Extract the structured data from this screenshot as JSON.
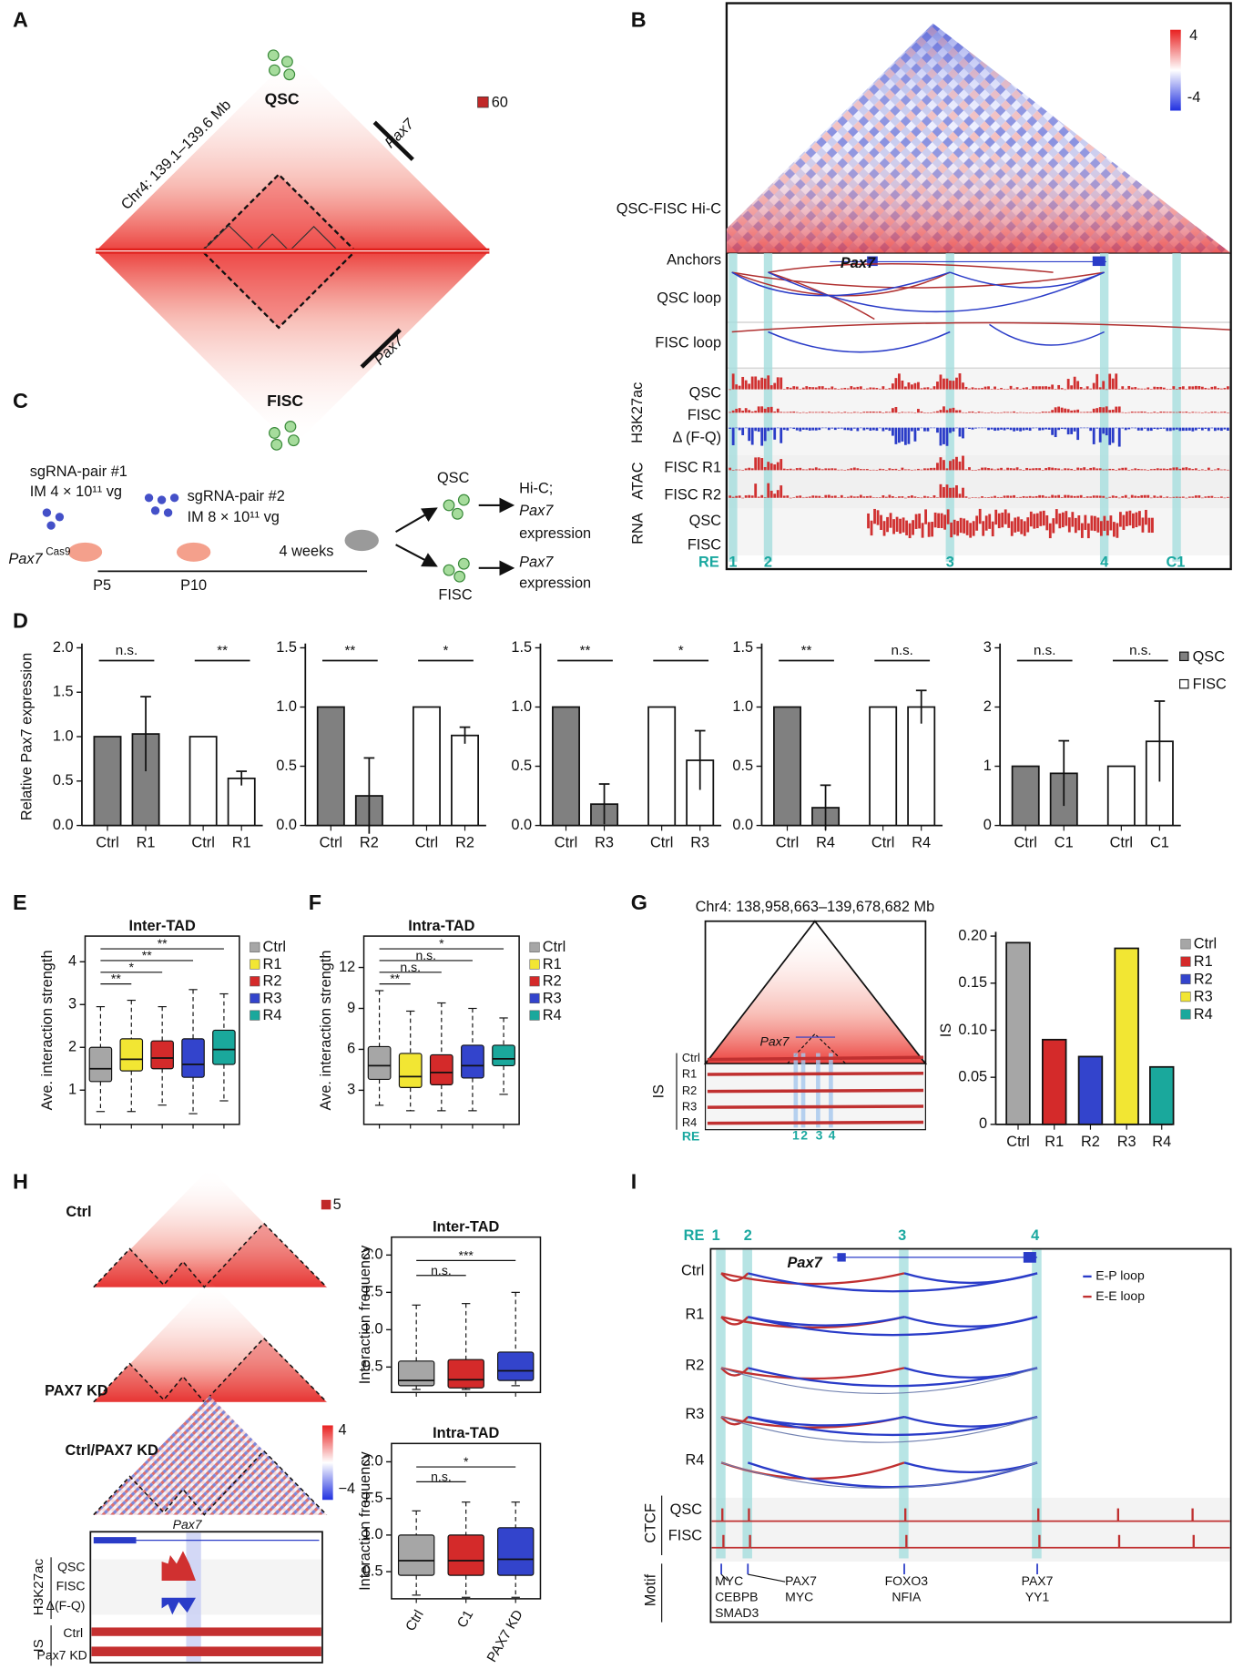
{
  "figure": {
    "A": {
      "letter": "A",
      "cells_top": "QSC",
      "cells_bottom": "FISC",
      "region": "Chr4: 139.1–139.6 Mb",
      "gene_top": "Pax7",
      "gene_bottom": "Pax7",
      "scale": "60"
    },
    "B": {
      "letter": "B",
      "scale_max": "4",
      "scale_min": "-4",
      "hic": "QSC-FISC Hi-C",
      "anchors": "Anchors",
      "gene": "Pax7",
      "qsc_loop": "QSC loop",
      "fisc_loop": "FISC loop",
      "h3k27ac": "H3K27ac",
      "h_qsc": "QSC",
      "h_fisc": "FISC",
      "h_delta": "Δ (F-Q)",
      "atac": "ATAC",
      "atac_r1": "FISC R1",
      "atac_r2": "FISC R2",
      "rna": "RNA",
      "rna_qsc": "QSC",
      "rna_fisc": "FISC",
      "re": "RE",
      "re_labels": [
        "1",
        "2",
        "3",
        "4",
        "C1"
      ]
    },
    "C": {
      "letter": "C",
      "sg1": "sgRNA-pair #1",
      "dose1": "IM 4 × 10¹¹ vg",
      "sg2": "sgRNA-pair #2",
      "dose2": "IM 8 × 10¹¹ vg",
      "mouse": "Pax7",
      "mouse_sup": "Cas9",
      "p5": "P5",
      "p10": "P10",
      "time": "4 weeks",
      "qsc": "QSC",
      "fisc": "FISC",
      "out1": [
        "Hi-C;",
        "Pax7",
        "expression"
      ],
      "out2": [
        "Pax7",
        "expression"
      ]
    },
    "D": {
      "letter": "D"
    },
    "E": {
      "letter": "E"
    },
    "F": {
      "letter": "F"
    },
    "G": {
      "letter": "G",
      "region": "Chr4: 138,958,663–139,678,682 Mb",
      "gene": "Pax7",
      "is": "IS",
      "tracks": [
        "Ctrl",
        "R1",
        "R2",
        "R3",
        "R4"
      ],
      "re": "RE",
      "re_labels": [
        "1",
        "2",
        "3",
        "4"
      ]
    },
    "H": {
      "letter": "H",
      "map1": "Ctrl",
      "map2": "PAX7 KD",
      "map3": "Ctrl/PAX7 KD",
      "scale": "5",
      "ratio_max": "4",
      "ratio_min": "−4",
      "gene": "Pax7",
      "h3k27ac": "H3K27ac",
      "h_qsc": "QSC",
      "h_fisc": "FISC",
      "h_delta": "Δ(F-Q)",
      "is": "IS",
      "is_ctrl": "Ctrl",
      "is_kd": "Pax7 KD"
    },
    "I": {
      "letter": "I",
      "re": "RE",
      "re_labels": [
        "1",
        "2",
        "3",
        "4"
      ],
      "gene": "Pax7",
      "tracks": [
        "Ctrl",
        "R1",
        "R2",
        "R3",
        "R4"
      ],
      "legend": [
        "E-P loop",
        "E-E loop"
      ],
      "ctcf": "CTCF",
      "c_qsc": "QSC",
      "c_fisc": "FISC",
      "motif": "Motif",
      "motifs": [
        [
          "MYC",
          "CEBPB",
          "SMAD3"
        ],
        [
          "PAX7",
          "MYC"
        ],
        [
          "FOXO3",
          "NFIA"
        ],
        [
          "PAX7",
          "YY1"
        ]
      ]
    }
  },
  "chart_data": [
    {
      "type": "bar",
      "ylabel": "Relative Pax7 expression",
      "categories": [
        "Ctrl",
        "R1",
        "Ctrl",
        "R1"
      ],
      "values": [
        1,
        1.03,
        1,
        0.53
      ],
      "errors": [
        null,
        0.42,
        null,
        0.08
      ],
      "colors": [
        "#808080",
        "#808080",
        "#ffffff",
        "#ffffff"
      ],
      "significance": [
        "n.s.",
        "**"
      ],
      "ylim": [
        0,
        2
      ],
      "yticks": [
        {
          "value": 0,
          "label": "0.0"
        },
        {
          "value": 0.5,
          "label": "0.5"
        },
        {
          "value": 1,
          "label": "1.0"
        },
        {
          "value": 1.5,
          "label": "1.5"
        },
        {
          "value": 2,
          "label": "2.0"
        }
      ]
    },
    {
      "type": "bar",
      "categories": [
        "Ctrl",
        "R2",
        "Ctrl",
        "R2"
      ],
      "values": [
        1,
        0.25,
        1,
        0.76
      ],
      "errors": [
        null,
        0.32,
        null,
        0.07
      ],
      "colors": [
        "#808080",
        "#808080",
        "#ffffff",
        "#ffffff"
      ],
      "significance": [
        "**",
        "*"
      ],
      "ylim": [
        0,
        1.5
      ],
      "yticks": [
        {
          "value": 0,
          "label": "0.0"
        },
        {
          "value": 0.5,
          "label": "0.5"
        },
        {
          "value": 1,
          "label": "1.0"
        },
        {
          "value": 1.5,
          "label": "1.5"
        }
      ]
    },
    {
      "type": "bar",
      "categories": [
        "Ctrl",
        "R3",
        "Ctrl",
        "R3"
      ],
      "values": [
        1,
        0.18,
        1,
        0.55
      ],
      "errors": [
        null,
        0.17,
        null,
        0.25
      ],
      "colors": [
        "#808080",
        "#808080",
        "#ffffff",
        "#ffffff"
      ],
      "significance": [
        "**",
        "*"
      ],
      "ylim": [
        0,
        1.5
      ],
      "yticks": [
        {
          "value": 0,
          "label": "0.0"
        },
        {
          "value": 0.5,
          "label": "0.5"
        },
        {
          "value": 1,
          "label": "1.0"
        },
        {
          "value": 1.5,
          "label": "1.5"
        }
      ]
    },
    {
      "type": "bar",
      "categories": [
        "Ctrl",
        "R4",
        "Ctrl",
        "R4"
      ],
      "values": [
        1,
        0.15,
        1,
        1.0
      ],
      "errors": [
        null,
        0.19,
        null,
        0.14
      ],
      "colors": [
        "#808080",
        "#808080",
        "#ffffff",
        "#ffffff"
      ],
      "significance": [
        "**",
        "n.s."
      ],
      "ylim": [
        0,
        1.5
      ],
      "yticks": [
        {
          "value": 0,
          "label": "0.0"
        },
        {
          "value": 0.5,
          "label": "0.5"
        },
        {
          "value": 1,
          "label": "1.0"
        },
        {
          "value": 1.5,
          "label": "1.5"
        }
      ]
    },
    {
      "type": "bar",
      "categories": [
        "Ctrl",
        "C1",
        "Ctrl",
        "C1"
      ],
      "values": [
        1,
        0.88,
        1,
        1.42
      ],
      "errors": [
        null,
        0.55,
        null,
        0.68
      ],
      "colors": [
        "#808080",
        "#808080",
        "#ffffff",
        "#ffffff"
      ],
      "significance": [
        "n.s.",
        "n.s."
      ],
      "ylim": [
        0,
        3
      ],
      "yticks": [
        0,
        1,
        2,
        3
      ],
      "legend": [
        {
          "name": "QSC",
          "color": "#808080"
        },
        {
          "name": "FISC",
          "color": "#ffffff"
        }
      ]
    },
    {
      "type": "box",
      "title": "Inter-TAD",
      "ylabel": "Ave. interaction strength",
      "categories": [
        "Ctrl",
        "R1",
        "R2",
        "R3",
        "R4"
      ],
      "colors": [
        "#a6a6a6",
        "#f2e633",
        "#d42a2a",
        "#3344cc",
        "#1aa89c"
      ],
      "boxes": [
        {
          "min": 0.5,
          "q1": 1.2,
          "median": 1.5,
          "q3": 2.0,
          "max": 2.95
        },
        {
          "min": 0.5,
          "q1": 1.45,
          "median": 1.72,
          "q3": 2.2,
          "max": 3.1
        },
        {
          "min": 0.65,
          "q1": 1.5,
          "median": 1.75,
          "q3": 2.15,
          "max": 2.95
        },
        {
          "min": 0.45,
          "q1": 1.3,
          "median": 1.6,
          "q3": 2.2,
          "max": 3.35
        },
        {
          "min": 0.75,
          "q1": 1.6,
          "median": 1.95,
          "q3": 2.4,
          "max": 3.25
        }
      ],
      "significance": [
        "**",
        "*",
        "**",
        "**"
      ],
      "ylim": [
        0.2,
        4.6
      ],
      "yticks": [
        1,
        2,
        3,
        4
      ]
    },
    {
      "type": "box",
      "title": "Intra-TAD",
      "ylabel": "Ave. interaction strength",
      "categories": [
        "Ctrl",
        "R1",
        "R2",
        "R3",
        "R4"
      ],
      "colors": [
        "#a6a6a6",
        "#f2e633",
        "#d42a2a",
        "#3344cc",
        "#1aa89c"
      ],
      "boxes": [
        {
          "min": 1.9,
          "q1": 3.8,
          "median": 4.8,
          "q3": 6.2,
          "max": 10.3
        },
        {
          "min": 1.5,
          "q1": 3.2,
          "median": 4.0,
          "q3": 5.7,
          "max": 8.8
        },
        {
          "min": 1.5,
          "q1": 3.4,
          "median": 4.3,
          "q3": 5.6,
          "max": 9.4
        },
        {
          "min": 1.5,
          "q1": 3.9,
          "median": 4.8,
          "q3": 6.3,
          "max": 9.0
        },
        {
          "min": 2.7,
          "q1": 4.8,
          "median": 5.3,
          "q3": 6.3,
          "max": 8.3
        }
      ],
      "significance": [
        "**",
        "n.s.",
        "n.s.",
        "*"
      ],
      "ylim": [
        0.5,
        14.3
      ],
      "yticks": [
        3,
        6,
        9,
        12
      ]
    },
    {
      "type": "bar",
      "ylabel": "IS",
      "categories": [
        "Ctrl",
        "R1",
        "R2",
        "R3",
        "R4"
      ],
      "values": [
        0.193,
        0.09,
        0.072,
        0.187,
        0.061
      ],
      "colors": [
        "#a6a6a6",
        "#d42a2a",
        "#3344cc",
        "#f2e633",
        "#1aa89c"
      ],
      "ylim": [
        0,
        0.2
      ],
      "yticks": [
        0,
        0.05,
        {
          "value": 0.1,
          "label": "0.10"
        },
        0.15,
        {
          "value": 0.2,
          "label": "0.20"
        }
      ],
      "legend_from_categories": true
    },
    {
      "type": "box",
      "title": "Inter-TAD",
      "ylabel": "Interaction frequency",
      "categories": [
        null,
        null,
        null
      ],
      "colors": [
        "#a6a6a6",
        "#d42a2a",
        "#3344cc"
      ],
      "boxes": [
        {
          "min": 0.2,
          "q1": 0.25,
          "median": 0.32,
          "q3": 0.58,
          "max": 1.33
        },
        {
          "min": 0.2,
          "q1": 0.22,
          "median": 0.33,
          "q3": 0.6,
          "max": 1.35
        },
        {
          "min": 0.25,
          "q1": 0.32,
          "median": 0.45,
          "q3": 0.7,
          "max": 1.5
        }
      ],
      "significance": [
        "n.s.",
        "***"
      ],
      "ylim": [
        0.16,
        2.24
      ],
      "yticks": [
        0.5,
        {
          "value": 1,
          "label": "1.0"
        },
        1.5,
        {
          "value": 2,
          "label": "2.0"
        }
      ]
    },
    {
      "type": "box",
      "title": "Intra-TAD",
      "ylabel": "Interaction frequency",
      "categories": [
        "Ctrl",
        "C1",
        "PAX7 KD"
      ],
      "colors": [
        "#a6a6a6",
        "#d42a2a",
        "#3344cc"
      ],
      "boxes": [
        {
          "min": 0.18,
          "q1": 0.45,
          "median": 0.65,
          "q3": 1.0,
          "max": 1.33
        },
        {
          "min": 0.15,
          "q1": 0.45,
          "median": 0.65,
          "q3": 1.0,
          "max": 1.45
        },
        {
          "min": 0.15,
          "q1": 0.45,
          "median": 0.67,
          "q3": 1.1,
          "max": 1.45
        }
      ],
      "significance": [
        "n.s.",
        "*"
      ],
      "ylim": [
        0.13,
        2.25
      ],
      "yticks": [
        0.5,
        {
          "value": 1,
          "label": "1.0"
        },
        1.5,
        {
          "value": 2,
          "label": "2.0"
        }
      ]
    }
  ]
}
